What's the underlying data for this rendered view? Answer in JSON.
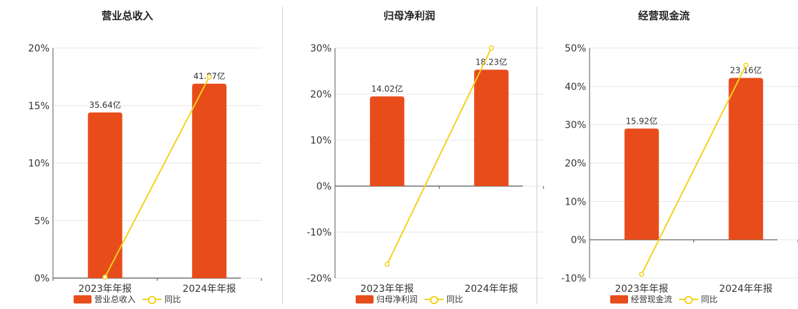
{
  "colors": {
    "bar": "#E84C1A",
    "line": "#F2D21B",
    "grid": "#e6e6e6",
    "axis": "#555555",
    "text": "#333333"
  },
  "chart_data": [
    {
      "type": "bar",
      "title": "营业总收入",
      "categories": [
        "2023年年报",
        "2024年年报"
      ],
      "bar_labels": [
        "35.64亿",
        "41.87亿"
      ],
      "y_ticks": [
        "0%",
        "5%",
        "10%",
        "15%",
        "20%"
      ],
      "ylim": [
        0,
        20
      ],
      "series": [
        {
          "name": "营业总收入",
          "kind": "bar",
          "values": [
            14.4,
            16.9
          ]
        },
        {
          "name": "同比",
          "kind": "line",
          "values": [
            0.1,
            17.5
          ]
        }
      ],
      "legend": "bottom"
    },
    {
      "type": "bar",
      "title": "归母净利润",
      "categories": [
        "2023年年报",
        "2024年年报"
      ],
      "bar_labels": [
        "14.02亿",
        "18.23亿"
      ],
      "y_ticks": [
        "-20%",
        "-10%",
        "0%",
        "10%",
        "20%",
        "30%"
      ],
      "ylim": [
        -20,
        30
      ],
      "series": [
        {
          "name": "归母净利润",
          "kind": "bar",
          "values": [
            19.5,
            25.3
          ]
        },
        {
          "name": "同比",
          "kind": "line",
          "values": [
            -17,
            30
          ]
        }
      ],
      "legend": "bottom"
    },
    {
      "type": "bar",
      "title": "经营现金流",
      "categories": [
        "2023年年报",
        "2024年年报"
      ],
      "bar_labels": [
        "15.92亿",
        "23.16亿"
      ],
      "y_ticks": [
        "-10%",
        "0%",
        "10%",
        "20%",
        "30%",
        "40%",
        "50%"
      ],
      "ylim": [
        -10,
        50
      ],
      "series": [
        {
          "name": "经营现金流",
          "kind": "bar",
          "values": [
            29,
            42.2
          ]
        },
        {
          "name": "同比",
          "kind": "line",
          "values": [
            -9,
            45.5
          ]
        }
      ],
      "legend": "bottom"
    }
  ]
}
